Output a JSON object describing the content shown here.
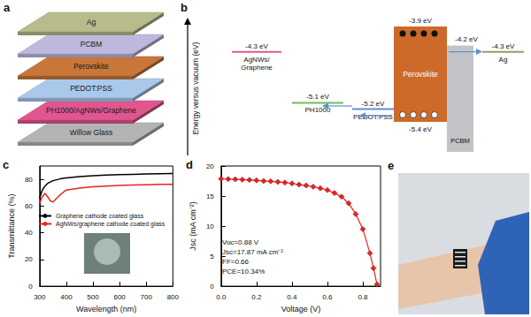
{
  "panels": {
    "a": {
      "label": "a",
      "layers": [
        {
          "name": "Ag",
          "color": "#b8bb8c"
        },
        {
          "name": "PCBM",
          "color": "#bdb9dc"
        },
        {
          "name": "Perovskite",
          "color": "#c8763a"
        },
        {
          "name": "PEDOT:PSS",
          "color": "#a9c8ea"
        },
        {
          "name": "PH1000/AgNWs/Graphene",
          "color": "#e0578f"
        },
        {
          "name": "Willow Glass",
          "color": "#b4b4b4"
        }
      ]
    },
    "b": {
      "label": "b",
      "axis_label": "Energy versus vacuum (eV)",
      "levels": [
        {
          "name_lines": [
            "AgNWs/",
            "Graphene"
          ],
          "level": -4.3,
          "label": "-4.3 eV",
          "color": "#e0578f"
        },
        {
          "name_lines": [
            "PH1000"
          ],
          "level": -5.1,
          "label": "-5.1 eV",
          "color": "#6fbf5a"
        },
        {
          "name_lines": [
            "PEDOT:PSS"
          ],
          "level": -5.2,
          "label": "-5.2 eV",
          "color": "#5b8fd6"
        },
        {
          "name_lines": [
            "Ag"
          ],
          "level": -4.3,
          "label": "-4.3 eV",
          "color": "#9a9c5e"
        }
      ],
      "perovskite": {
        "name": "Perovskite",
        "top": -3.9,
        "top_label": "-3.9 eV",
        "bottom": -5.4,
        "bottom_label": "-5.4 eV",
        "color": "#cd6a2a"
      },
      "pcbm": {
        "name": "PCBM",
        "top": -4.2,
        "top_label": "-4.2 eV",
        "color": "#c4c4c8"
      }
    },
    "e": {
      "label": "e"
    }
  },
  "chart_data": [
    {
      "panel_label": "c",
      "type": "line",
      "x_label": "Wavelength (nm)",
      "y_label": "Transmittance (%)",
      "x": [
        300,
        310,
        320,
        330,
        340,
        350,
        360,
        380,
        400,
        450,
        500,
        550,
        600,
        650,
        700,
        750,
        800
      ],
      "series": [
        {
          "name": "Graphene cathode coated glass",
          "color": "#000000",
          "values": [
            66,
            72,
            75,
            77,
            78,
            79,
            79.5,
            80.5,
            81,
            82,
            82.8,
            83.2,
            83.5,
            83.8,
            84,
            84.2,
            84.3
          ]
        },
        {
          "name": "AgNWs/graphene cathode coated glass",
          "color": "#e8231f",
          "values": [
            62,
            67,
            69.5,
            67,
            64,
            63,
            65,
            69,
            72,
            73.5,
            74.5,
            75,
            75.5,
            75.8,
            76,
            76.2,
            76.3
          ]
        }
      ],
      "xlim": [
        300,
        800
      ],
      "xticks": [
        300,
        400,
        500,
        600,
        700,
        800
      ],
      "ylim": [
        0,
        90
      ],
      "yticks": [
        0,
        20,
        40,
        60,
        80
      ],
      "grid": false,
      "legend": "left"
    },
    {
      "panel_label": "d",
      "type": "line",
      "marker": "diamond",
      "color": "#e8231f",
      "x_label": "Voltage (V)",
      "y_label": "Jsc (mA cm⁻²)",
      "x": [
        0,
        0.04,
        0.08,
        0.12,
        0.16,
        0.2,
        0.24,
        0.28,
        0.32,
        0.36,
        0.4,
        0.44,
        0.48,
        0.52,
        0.56,
        0.6,
        0.64,
        0.68,
        0.72,
        0.76,
        0.8,
        0.84,
        0.86,
        0.88
      ],
      "values": [
        17.87,
        17.82,
        17.78,
        17.73,
        17.68,
        17.6,
        17.52,
        17.45,
        17.35,
        17.25,
        17.1,
        16.9,
        16.75,
        16.55,
        16.3,
        16.0,
        15.5,
        14.9,
        13.8,
        12.0,
        9.5,
        5.5,
        3.0,
        0.3
      ],
      "xlim": [
        0,
        0.9
      ],
      "xticks": [
        {
          "value": 0,
          "label": "0.0"
        },
        0.2,
        0.4,
        0.6,
        0.8
      ],
      "ylim": [
        0,
        20
      ],
      "yticks": [
        0,
        5,
        10,
        15,
        20
      ],
      "grid": false,
      "annotations": [
        "Voc=0.88 V",
        "Jsc=17.87 mA cm⁻²",
        "FF=0.66",
        "PCE=10.34%"
      ]
    }
  ]
}
